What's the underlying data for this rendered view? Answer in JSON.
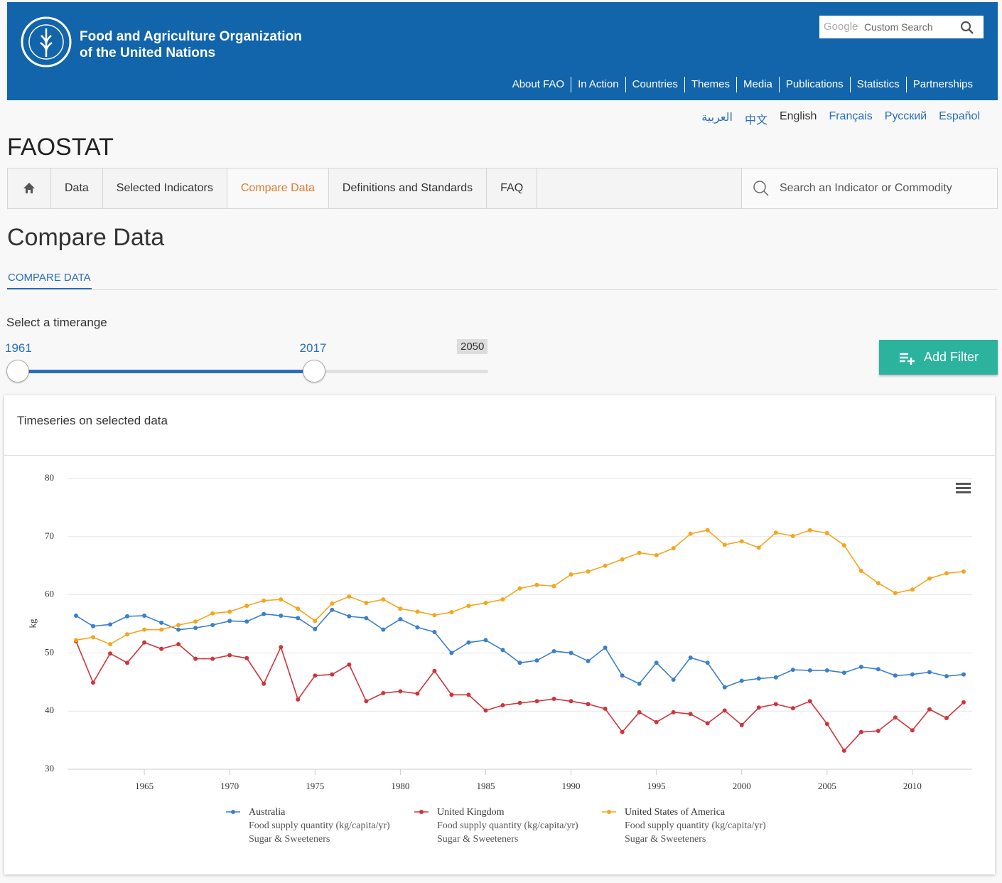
{
  "header": {
    "org_name": [
      "Food and Agriculture Organization",
      "of the United Nations"
    ],
    "search_brand": "Google",
    "search_placeholder": "Custom Search",
    "nav": [
      "About FAO",
      "In Action",
      "Countries",
      "Themes",
      "Media",
      "Publications",
      "Statistics",
      "Partnerships"
    ]
  },
  "languages": [
    "العربية",
    "中文",
    "English",
    "Français",
    "Русский",
    "Español"
  ],
  "site_title": "FAOSTAT",
  "tabs": [
    "Data",
    "Selected Indicators",
    "Compare Data",
    "Definitions and Standards",
    "FAQ"
  ],
  "search_indicator": "Search an Indicator or Commodity",
  "page_title": "Compare Data",
  "subtab": "COMPARE DATA",
  "timerange": {
    "label": "Select a timerange",
    "from": 1961,
    "to": 2017,
    "max": 2050
  },
  "add_filter": "Add Filter",
  "panel_title": "Timeseries on selected data",
  "chart_data": {
    "type": "line",
    "y_label": "kg",
    "x": [
      1961,
      1962,
      1963,
      1964,
      1965,
      1966,
      1967,
      1968,
      1969,
      1970,
      1971,
      1972,
      1973,
      1974,
      1975,
      1976,
      1977,
      1978,
      1979,
      1980,
      1981,
      1982,
      1983,
      1984,
      1985,
      1986,
      1987,
      1988,
      1989,
      1990,
      1991,
      1992,
      1993,
      1994,
      1995,
      1996,
      1997,
      1998,
      1999,
      2000,
      2001,
      2002,
      2003,
      2004,
      2005,
      2006,
      2007,
      2008,
      2009,
      2010,
      2011,
      2012,
      2013
    ],
    "xlim": [
      1960.5,
      2013.5
    ],
    "xticks": [
      1965,
      1970,
      1975,
      1980,
      1985,
      1990,
      1995,
      2000,
      2005,
      2010
    ],
    "ylim": [
      30,
      80
    ],
    "yticks": [
      30,
      40,
      50,
      60,
      70,
      80
    ],
    "grid": true,
    "series": [
      {
        "name": "Australia",
        "element": "Food supply quantity (kg/capita/yr)",
        "item": "Sugar & Sweeteners",
        "color": "#3b7fcc",
        "values": [
          56.4,
          54.6,
          54.9,
          56.3,
          56.4,
          55.2,
          54.0,
          54.3,
          54.8,
          55.5,
          55.4,
          56.7,
          56.4,
          56.0,
          54.1,
          57.4,
          56.3,
          56.0,
          54.0,
          55.8,
          54.4,
          53.6,
          50.0,
          51.8,
          52.2,
          50.5,
          48.3,
          48.7,
          50.3,
          50.0,
          48.6,
          50.9,
          46.1,
          44.7,
          48.3,
          45.4,
          49.2,
          48.3,
          44.1,
          45.2,
          45.6,
          45.8,
          47.1,
          47.0,
          47.0,
          46.6,
          47.6,
          47.2,
          46.1,
          46.3,
          46.7,
          46.0,
          46.3
        ]
      },
      {
        "name": "United Kingdom",
        "element": "Food supply quantity (kg/capita/yr)",
        "item": "Sugar & Sweeteners",
        "color": "#d0343c",
        "values": [
          52.0,
          44.9,
          49.9,
          48.3,
          51.8,
          50.7,
          51.5,
          49.0,
          49.0,
          49.6,
          49.1,
          44.7,
          51.0,
          42.0,
          46.1,
          46.3,
          48.0,
          41.7,
          43.1,
          43.4,
          43.0,
          46.9,
          42.8,
          42.8,
          40.1,
          41.0,
          41.4,
          41.7,
          42.1,
          41.7,
          41.2,
          40.4,
          36.4,
          39.8,
          38.1,
          39.8,
          39.5,
          37.9,
          40.1,
          37.6,
          40.6,
          41.2,
          40.5,
          41.7,
          37.8,
          33.2,
          36.4,
          36.6,
          38.9,
          36.7,
          40.3,
          38.8,
          41.5
        ]
      },
      {
        "name": "United States of America",
        "element": "Food supply quantity (kg/capita/yr)",
        "item": "Sugar & Sweeteners",
        "color": "#f5a51c",
        "values": [
          52.2,
          52.7,
          51.5,
          53.2,
          54.0,
          54.0,
          54.8,
          55.4,
          56.8,
          57.1,
          58.1,
          59.0,
          59.2,
          57.6,
          55.5,
          58.5,
          59.7,
          58.6,
          59.2,
          57.6,
          57.1,
          56.5,
          57.0,
          58.1,
          58.6,
          59.2,
          61.1,
          61.7,
          61.5,
          63.5,
          64.0,
          65.0,
          66.1,
          67.2,
          66.8,
          68.0,
          70.5,
          71.1,
          68.6,
          69.2,
          68.1,
          70.7,
          70.1,
          71.1,
          70.6,
          68.5,
          64.1,
          62.0,
          60.3,
          60.9,
          62.8,
          63.7,
          64.0
        ]
      }
    ]
  }
}
